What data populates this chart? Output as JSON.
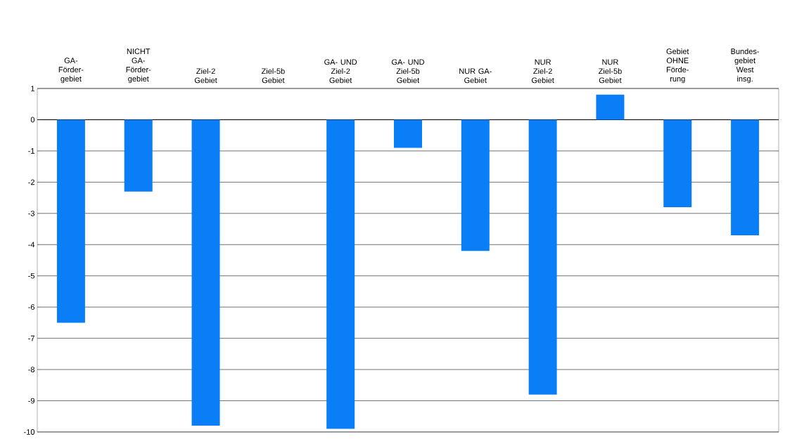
{
  "chart_data": {
    "type": "bar",
    "categories": [
      "GA- Förder- gebiet",
      "NICHT GA- Förder- gebiet",
      "Ziel-2 Gebiet",
      "Ziel-5b Gebiet",
      "GA- UND Ziel-2 Gebiet",
      "GA- UND Ziel-5b Gebiet",
      "NUR GA- Gebiet",
      "NUR Ziel-2 Gebiet",
      "NUR Ziel-5b Gebiet",
      "Gebiet OHNE Förde- rung",
      "Bundes- gebiet West insg."
    ],
    "values": [
      -6.5,
      -2.3,
      -9.8,
      null,
      -9.9,
      -0.9,
      -4.2,
      -8.8,
      0.8,
      -2.8,
      -3.7
    ],
    "color": "#0a7ef7",
    "ylim": [
      -10,
      1
    ],
    "yticks": [
      -10,
      -9,
      -8,
      -7,
      -6,
      -5,
      -4,
      -3,
      -2,
      -1,
      0,
      1
    ],
    "grid": "y"
  }
}
